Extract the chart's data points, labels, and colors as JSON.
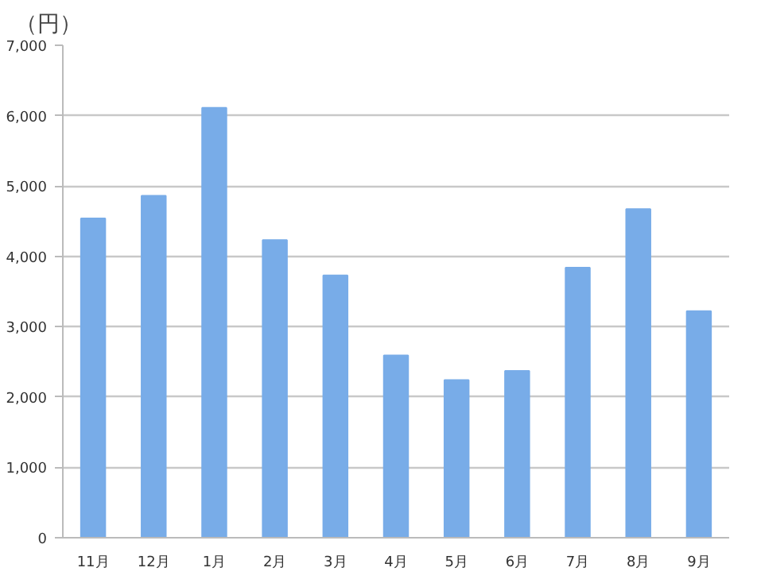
{
  "chart_data": {
    "type": "bar",
    "ylabel": "（円）",
    "categories": [
      "11月",
      "12月",
      "1月",
      "2月",
      "3月",
      "4月",
      "5月",
      "6月",
      "7月",
      "8月",
      "9月"
    ],
    "values": [
      4540,
      4860,
      6110,
      4230,
      3730,
      2590,
      2240,
      2370,
      3840,
      4670,
      3220
    ],
    "color": "#78ace8",
    "ylim": [
      0,
      7000
    ],
    "yticks": [
      {
        "value": 0,
        "label": "0"
      },
      {
        "value": 1000,
        "label": "1,000"
      },
      {
        "value": 2000,
        "label": "2,000"
      },
      {
        "value": 3000,
        "label": "3,000"
      },
      {
        "value": 4000,
        "label": "4,000"
      },
      {
        "value": 5000,
        "label": "5,000"
      },
      {
        "value": 6000,
        "label": "6,000"
      },
      {
        "value": 7000,
        "label": "7,000"
      }
    ],
    "grid": "y"
  }
}
